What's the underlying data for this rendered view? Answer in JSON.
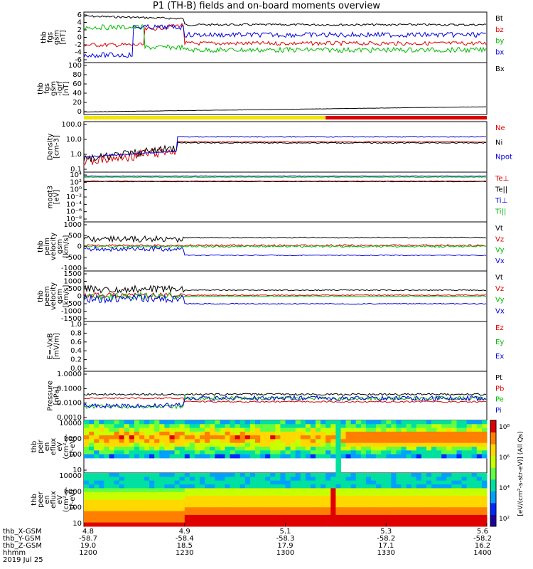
{
  "title": "P1 (TH-B) fields and on-board moments overview",
  "chart_data": {
    "type": "line",
    "panels": [
      {
        "id": "fgs",
        "ylabel": [
          "thb",
          "fgs",
          "gsm",
          "[nT]"
        ],
        "yticks": [
          "6",
          "4",
          "2",
          "0",
          "-2",
          "-4",
          "-6"
        ],
        "series": [
          {
            "name": "Bt",
            "color": "#000000"
          },
          {
            "name": "bz",
            "color": "#dd0000"
          },
          {
            "name": "by",
            "color": "#00bb00"
          },
          {
            "name": "bx",
            "color": "#0000dd"
          }
        ]
      },
      {
        "id": "fgs-dsl",
        "ylabel": [
          "thb",
          "fgs",
          "gsm",
          "-igrf",
          "[nT]"
        ],
        "yticks": [
          "100",
          "80",
          "60",
          "40",
          "20",
          "0"
        ],
        "series": [
          {
            "name": "Bx",
            "color": "#000000"
          }
        ]
      },
      {
        "id": "density",
        "ylabel": [
          "Density",
          "[cm-3]"
        ],
        "yticks": [
          "100.0",
          "10.0",
          "1.0",
          "0.1"
        ],
        "series": [
          {
            "name": "Ne",
            "color": "#dd0000"
          },
          {
            "name": "Ni",
            "color": "#000000"
          },
          {
            "name": "Npot",
            "color": "#0000dd"
          }
        ]
      },
      {
        "id": "temp",
        "ylabel": [
          "moqt3",
          "[eV]"
        ],
        "yticks": [
          "10⁴",
          "10²",
          "10⁰",
          "10⁻²",
          "10⁻⁴",
          "10⁻⁶",
          "10⁻⁸"
        ],
        "series": [
          {
            "name": "Te⊥",
            "color": "#dd0000"
          },
          {
            "name": "Te||",
            "color": "#000000"
          },
          {
            "name": "Ti⊥",
            "color": "#0000dd"
          },
          {
            "name": "Ti||",
            "color": "#00bb00"
          }
        ]
      },
      {
        "id": "peim",
        "ylabel": [
          "thb",
          "peim",
          "velocity",
          "gsm",
          "[km/s]"
        ],
        "yticks": [
          "1000",
          "500",
          "0",
          "-500",
          "-1000"
        ],
        "series": [
          {
            "name": "Vt",
            "color": "#000000"
          },
          {
            "name": "Vz",
            "color": "#dd0000"
          },
          {
            "name": "Vy",
            "color": "#00bb00"
          },
          {
            "name": "Vx",
            "color": "#0000dd"
          }
        ]
      },
      {
        "id": "peem",
        "ylabel": [
          "thb",
          "peem",
          "velocity",
          "gsm",
          "[km/s]"
        ],
        "yticks": [
          "1500",
          "1000",
          "500",
          "0",
          "-500",
          "-1000",
          "-1500"
        ],
        "series": [
          {
            "name": "Vt",
            "color": "#000000"
          },
          {
            "name": "Vz",
            "color": "#dd0000"
          },
          {
            "name": "Vy",
            "color": "#00bb00"
          },
          {
            "name": "Vx",
            "color": "#0000dd"
          }
        ]
      },
      {
        "id": "efield",
        "ylabel": [
          "E=-VxB",
          "[mV/m]"
        ],
        "yticks": [
          "1.0",
          "0.8",
          "0.6",
          "0.4",
          "0.2",
          "0.0"
        ],
        "series": [
          {
            "name": "Ez",
            "color": "#dd0000"
          },
          {
            "name": "Ey",
            "color": "#00bb00"
          },
          {
            "name": "Ex",
            "color": "#0000dd"
          }
        ]
      },
      {
        "id": "pressure",
        "ylabel": [
          "Pressure",
          "[nPa]"
        ],
        "yticks": [
          "1.0000",
          "0.1000",
          "0.0100",
          "0.0010"
        ],
        "series": [
          {
            "name": "Pt",
            "color": "#000000"
          },
          {
            "name": "Pb",
            "color": "#dd0000"
          },
          {
            "name": "Pe",
            "color": "#00bb00"
          },
          {
            "name": "Pi",
            "color": "#0000dd"
          }
        ]
      },
      {
        "id": "peir",
        "ylabel": [
          "thb",
          "peir",
          "en",
          "eflux",
          "eV",
          "(cm²-s-",
          "sr-eV)"
        ],
        "yticks": [
          "10000",
          "1000",
          "100",
          "10"
        ]
      },
      {
        "id": "peer",
        "ylabel": [
          "thb",
          "peer",
          "en",
          "eflux",
          "eV",
          "(cm²-s-",
          "sr-eV)"
        ],
        "yticks": [
          "10000",
          "1000",
          "100",
          "10"
        ]
      }
    ],
    "colorbar": {
      "ticks": [
        "10⁸",
        "10⁶",
        "10⁴",
        "10²"
      ],
      "label": "[eV/(cm²-s-str-eV)] (All Qs)"
    },
    "x_ticks": [
      {
        "x": "4.8",
        "y": "-58.7",
        "z": "19.0",
        "hhmm": "1200"
      },
      {
        "x": "4.9",
        "y": "-58.4",
        "z": "18.5",
        "hhmm": "1230"
      },
      {
        "x": "5.1",
        "y": "-58.3",
        "z": "17.9",
        "hhmm": "1300"
      },
      {
        "x": "5.3",
        "y": "-58.2",
        "z": "17.1",
        "hhmm": "1330"
      },
      {
        "x": "5.6",
        "y": "-58.2",
        "z": "16.2",
        "hhmm": "1400"
      }
    ],
    "x_row_labels": [
      "thb_X-GSM",
      "thb_Y-GSM",
      "thb_Z-GSM",
      "hhmm"
    ],
    "date": "2019 Jul 25",
    "mode_bar": {
      "yellow_until_fraction": 0.6,
      "colors": {
        "a": "#f2e600",
        "b": "#dd0000"
      }
    }
  }
}
